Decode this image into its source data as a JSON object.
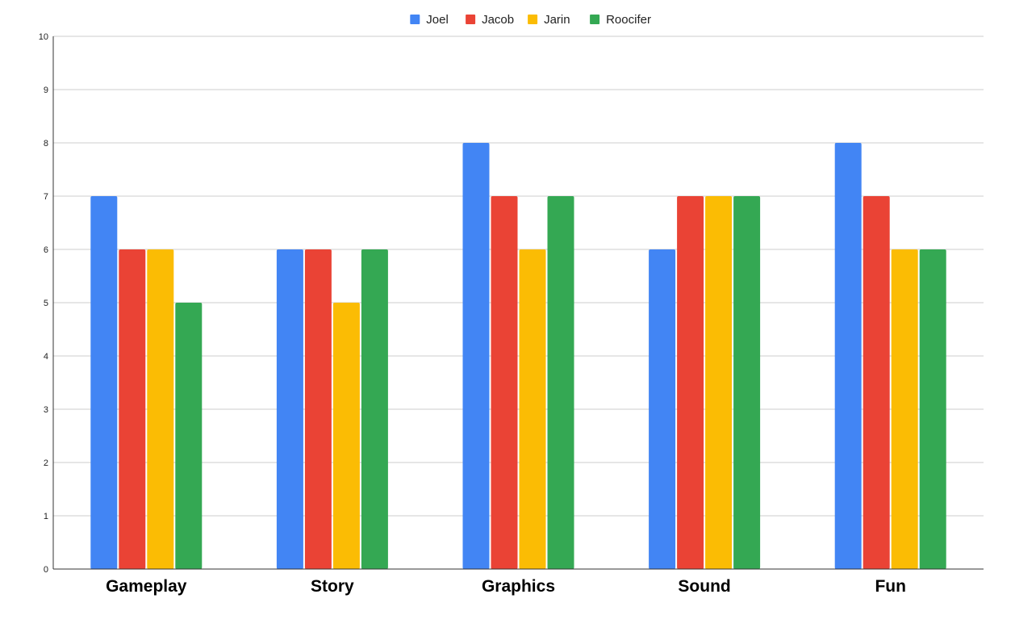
{
  "chart_data": {
    "type": "bar",
    "title": "",
    "xlabel": "",
    "ylabel": "",
    "categories": [
      "Gameplay",
      "Story",
      "Graphics",
      "Sound",
      "Fun"
    ],
    "series": [
      {
        "name": "Joel",
        "color": "#4285f4",
        "values": [
          7,
          6,
          8,
          6,
          8
        ]
      },
      {
        "name": "Jacob",
        "color": "#ea4335",
        "values": [
          6,
          6,
          7,
          7,
          7
        ]
      },
      {
        "name": "Jarin",
        "color": "#fbbc04",
        "values": [
          6,
          5,
          6,
          7,
          6
        ]
      },
      {
        "name": "Roocifer",
        "color": "#34a853",
        "values": [
          5,
          6,
          7,
          7,
          6
        ]
      }
    ],
    "ylim": [
      0,
      10
    ],
    "yticks": [
      0,
      1,
      2,
      3,
      4,
      5,
      6,
      7,
      8,
      9,
      10
    ],
    "grid": true,
    "legend": "top-center",
    "colors": {
      "grid": "#cccccc",
      "axis": "#333333"
    }
  }
}
